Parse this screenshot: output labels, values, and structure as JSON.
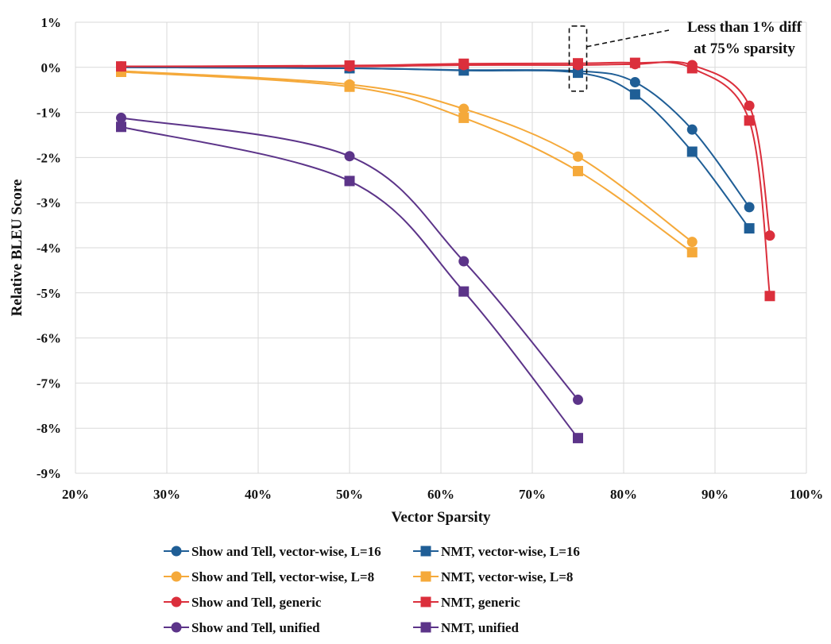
{
  "chart_data": {
    "type": "line",
    "xlabel": "Vector Sparsity",
    "ylabel": "Relative BLEU Score",
    "xlim": [
      0.2,
      1.0
    ],
    "ylim": [
      -9,
      1
    ],
    "x_ticks": [
      "20%",
      "30%",
      "40%",
      "50%",
      "60%",
      "70%",
      "80%",
      "90%",
      "100%"
    ],
    "y_ticks": [
      "1%",
      "0%",
      "-1%",
      "-2%",
      "-3%",
      "-4%",
      "-5%",
      "-6%",
      "-7%",
      "-8%",
      "-9%"
    ],
    "grid": true,
    "legend_position": "bottom",
    "annotation": {
      "lines": [
        "Less than 1% diff",
        "at 75% sparsity"
      ],
      "x": 0.75,
      "y": 0
    },
    "series": [
      {
        "name": "Show and Tell, vector-wise, L=16",
        "color": "#1F5E96",
        "marker": "circle",
        "points": [
          [
            0.25,
            0.0
          ],
          [
            0.5,
            -0.02
          ],
          [
            0.625,
            -0.06
          ],
          [
            0.75,
            -0.08
          ],
          [
            0.8125,
            -0.33
          ],
          [
            0.875,
            -1.38
          ],
          [
            0.9375,
            -3.1
          ]
        ]
      },
      {
        "name": "NMT, vector-wise, L=16",
        "color": "#1F5E96",
        "marker": "square",
        "points": [
          [
            0.25,
            0.0
          ],
          [
            0.5,
            -0.02
          ],
          [
            0.625,
            -0.07
          ],
          [
            0.75,
            -0.12
          ],
          [
            0.8125,
            -0.6
          ],
          [
            0.875,
            -1.87
          ],
          [
            0.9375,
            -3.57
          ]
        ]
      },
      {
        "name": "Show and Tell, vector-wise, L=8",
        "color": "#F5A93A",
        "marker": "circle",
        "points": [
          [
            0.25,
            -0.08
          ],
          [
            0.5,
            -0.38
          ],
          [
            0.625,
            -0.92
          ],
          [
            0.75,
            -1.98
          ],
          [
            0.875,
            -3.87
          ]
        ]
      },
      {
        "name": "NMT, vector-wise, L=8",
        "color": "#F5A93A",
        "marker": "square",
        "points": [
          [
            0.25,
            -0.1
          ],
          [
            0.5,
            -0.43
          ],
          [
            0.625,
            -1.12
          ],
          [
            0.75,
            -2.3
          ],
          [
            0.875,
            -4.1
          ]
        ]
      },
      {
        "name": "Show and Tell, generic",
        "color": "#DB2F3C",
        "marker": "circle",
        "points": [
          [
            0.25,
            0.02
          ],
          [
            0.5,
            0.02
          ],
          [
            0.625,
            0.05
          ],
          [
            0.75,
            0.05
          ],
          [
            0.8125,
            0.07
          ],
          [
            0.875,
            0.05
          ],
          [
            0.9375,
            -0.85
          ],
          [
            0.96,
            -3.73
          ]
        ]
      },
      {
        "name": "NMT, generic",
        "color": "#DB2F3C",
        "marker": "square",
        "points": [
          [
            0.25,
            0.02
          ],
          [
            0.5,
            0.04
          ],
          [
            0.625,
            0.08
          ],
          [
            0.75,
            0.09
          ],
          [
            0.8125,
            0.1
          ],
          [
            0.875,
            -0.02
          ],
          [
            0.9375,
            -1.18
          ],
          [
            0.96,
            -5.07
          ]
        ]
      },
      {
        "name": "Show and Tell, unified",
        "color": "#5C3489",
        "marker": "circle",
        "points": [
          [
            0.25,
            -1.12
          ],
          [
            0.5,
            -1.97
          ],
          [
            0.625,
            -4.3
          ],
          [
            0.75,
            -7.37
          ]
        ]
      },
      {
        "name": "NMT, unified",
        "color": "#5C3489",
        "marker": "square",
        "points": [
          [
            0.25,
            -1.32
          ],
          [
            0.5,
            -2.52
          ],
          [
            0.625,
            -4.97
          ],
          [
            0.75,
            -8.22
          ]
        ]
      }
    ]
  }
}
